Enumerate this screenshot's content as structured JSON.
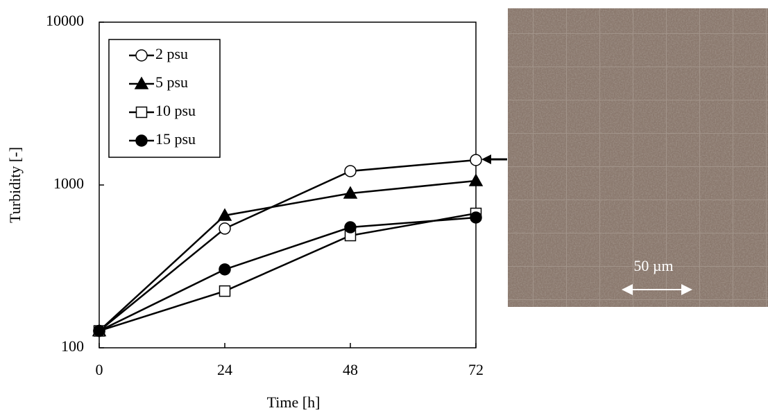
{
  "chart_data": {
    "type": "line",
    "x_label": "Time [h]",
    "y_label": "Turbidity  [-]",
    "x": [
      0,
      24,
      48,
      72
    ],
    "xlim": [
      0,
      72
    ],
    "xticks": [
      0,
      24,
      48,
      72
    ],
    "ylim": [
      100,
      10000
    ],
    "yticks": [
      100,
      1000,
      10000
    ],
    "log_y": true,
    "legend_position": "upper-left",
    "series": [
      {
        "name": "2 psu",
        "color": "#000000",
        "marker": "circle-open",
        "values": [
          127,
          540,
          1217,
          1423
        ]
      },
      {
        "name": "5 psu",
        "color": "#000000",
        "marker": "triangle",
        "values": [
          127,
          650,
          889,
          1061
        ]
      },
      {
        "name": "10 psu",
        "color": "#000000",
        "marker": "square-open",
        "values": [
          127,
          223,
          489,
          669
        ]
      },
      {
        "name": "15 psu",
        "color": "#000000",
        "marker": "circle",
        "values": [
          127,
          303,
          550,
          631
        ]
      }
    ],
    "annotation": "50 µm"
  }
}
